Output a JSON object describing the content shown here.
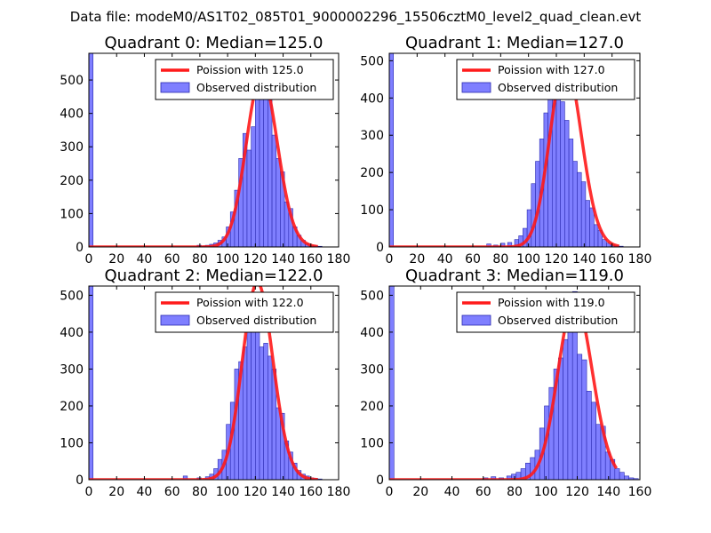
{
  "figure": {
    "suptitle": "Data file: modeM0/AS1T02_085T01_9000002296_15506cztM0_level2_quad_clean.evt"
  },
  "colors": {
    "bar_fill": "#7f7fff",
    "bar_edge": "#2a2ab0",
    "poisson_line": "#ff1a1a",
    "axis": "#000000"
  },
  "chart_data": [
    {
      "type": "bar",
      "title": "Quadrant 0: Median=125.0",
      "xlim": [
        0,
        180
      ],
      "ylim": [
        0,
        580
      ],
      "xticks": [
        0,
        20,
        40,
        60,
        80,
        100,
        120,
        140,
        160,
        180
      ],
      "yticks": [
        0,
        100,
        200,
        300,
        400,
        500
      ],
      "bin_width": 3.0,
      "bins_x": [
        0,
        78,
        81,
        84,
        87,
        90,
        93,
        96,
        99,
        102,
        105,
        108,
        111,
        114,
        117,
        120,
        123,
        126,
        129,
        132,
        135,
        138,
        141,
        144,
        147,
        150,
        153,
        156,
        159,
        162,
        165
      ],
      "bins_y": [
        580,
        5,
        3,
        5,
        8,
        12,
        20,
        30,
        60,
        105,
        170,
        265,
        340,
        290,
        360,
        445,
        540,
        480,
        445,
        335,
        265,
        225,
        135,
        115,
        60,
        35,
        20,
        10,
        5,
        3,
        2
      ],
      "median": 125.0,
      "legend": {
        "line": "Poission with 125.0",
        "bars": "Observed distribution"
      }
    },
    {
      "type": "bar",
      "title": "Quadrant 1: Median=127.0",
      "xlim": [
        0,
        180
      ],
      "ylim": [
        0,
        520
      ],
      "xticks": [
        0,
        20,
        40,
        60,
        80,
        100,
        120,
        140,
        160,
        180
      ],
      "yticks": [
        0,
        100,
        200,
        300,
        400,
        500
      ],
      "bin_width": 3.0,
      "bins_x": [
        0,
        70,
        75,
        80,
        85,
        90,
        93,
        96,
        99,
        102,
        105,
        108,
        111,
        114,
        117,
        120,
        123,
        126,
        129,
        132,
        135,
        138,
        141,
        144,
        147,
        150,
        153,
        156,
        159,
        162,
        165
      ],
      "bins_y": [
        520,
        8,
        5,
        10,
        12,
        20,
        30,
        50,
        100,
        170,
        230,
        290,
        360,
        440,
        500,
        440,
        390,
        340,
        290,
        230,
        200,
        175,
        125,
        105,
        60,
        45,
        20,
        10,
        5,
        3,
        2
      ],
      "median": 127.0,
      "legend": {
        "line": "Poission with 127.0",
        "bars": "Observed distribution"
      }
    },
    {
      "type": "bar",
      "title": "Quadrant 2: Median=122.0",
      "xlim": [
        0,
        180
      ],
      "ylim": [
        0,
        525
      ],
      "xticks": [
        0,
        20,
        40,
        60,
        80,
        100,
        120,
        140,
        160,
        180
      ],
      "yticks": [
        0,
        100,
        200,
        300,
        400,
        500
      ],
      "bin_width": 3.0,
      "bins_x": [
        0,
        68,
        78,
        84,
        87,
        90,
        93,
        96,
        99,
        102,
        105,
        108,
        111,
        114,
        117,
        120,
        123,
        126,
        129,
        132,
        135,
        138,
        141,
        144,
        147,
        150,
        153,
        156,
        159,
        162,
        165
      ],
      "bins_y": [
        525,
        10,
        5,
        8,
        15,
        30,
        55,
        80,
        150,
        210,
        300,
        320,
        360,
        420,
        440,
        500,
        360,
        370,
        335,
        300,
        195,
        180,
        105,
        75,
        45,
        25,
        15,
        10,
        5,
        3,
        2
      ],
      "median": 122.0,
      "legend": {
        "line": "Poission with 122.0",
        "bars": "Observed distribution"
      }
    },
    {
      "type": "bar",
      "title": "Quadrant 3: Median=119.0",
      "xlim": [
        0,
        160
      ],
      "ylim": [
        0,
        525
      ],
      "xticks": [
        0,
        20,
        40,
        60,
        80,
        100,
        120,
        140,
        160
      ],
      "yticks": [
        0,
        100,
        200,
        300,
        400,
        500
      ],
      "bin_width": 3.0,
      "bins_x": [
        0,
        60,
        65,
        70,
        75,
        78,
        81,
        84,
        87,
        90,
        93,
        96,
        99,
        102,
        105,
        108,
        111,
        114,
        117,
        120,
        123,
        126,
        129,
        132,
        135,
        138,
        141,
        144,
        147,
        150,
        153,
        156
      ],
      "bins_y": [
        525,
        5,
        8,
        5,
        10,
        15,
        20,
        30,
        45,
        60,
        80,
        140,
        200,
        250,
        300,
        330,
        380,
        440,
        510,
        340,
        325,
        240,
        210,
        150,
        145,
        75,
        55,
        30,
        20,
        10,
        5,
        3
      ],
      "median": 119.0,
      "legend": {
        "line": "Poission with 119.0",
        "bars": "Observed distribution"
      }
    }
  ]
}
